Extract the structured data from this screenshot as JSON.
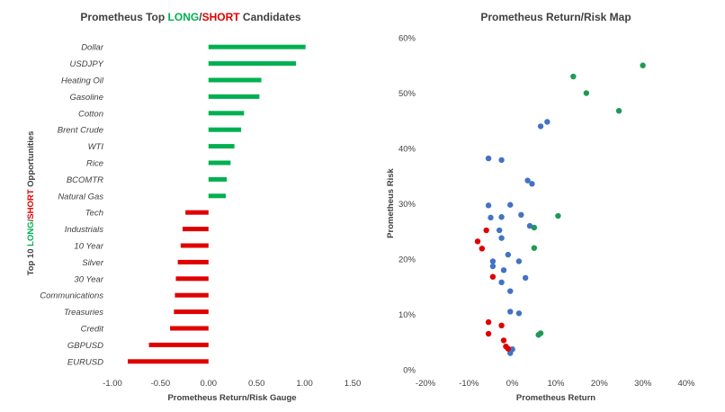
{
  "chart_data": [
    {
      "type": "bar",
      "orientation": "horizontal",
      "title": {
        "prefix": "Prometheus Top ",
        "long": "LONG",
        "sep": "/",
        "short": "SHORT",
        "suffix": " Candidates"
      },
      "xlabel": "Prometheus Return/Risk Gauge",
      "ylabel": {
        "prefix": "Top 10 ",
        "long": "LONG",
        "sep": "/",
        "short": "SHORT",
        "suffix": " Opportunities"
      },
      "xlim": [
        -1.0,
        1.5
      ],
      "xticks": [
        "-1.00",
        "-0.50",
        "0.00",
        "0.50",
        "1.00",
        "1.50"
      ],
      "xtick_values": [
        -1.0,
        -0.5,
        0.0,
        0.5,
        1.0,
        1.5
      ],
      "colors": {
        "long": "#00b050",
        "short": "#e00000"
      },
      "categories": [
        "Dollar",
        "USDJPY",
        "Heating Oil",
        "Gasoline",
        "Cotton",
        "Brent Crude",
        "WTI",
        "Rice",
        "BCOMTR",
        "Natural Gas",
        "Tech",
        "Industrials",
        "10 Year",
        "Silver",
        "30 Year",
        "Communications",
        "Treasuries",
        "Credit",
        "GBPUSD",
        "EURUSD"
      ],
      "values": [
        1.01,
        0.91,
        0.55,
        0.53,
        0.37,
        0.34,
        0.27,
        0.23,
        0.19,
        0.18,
        -0.24,
        -0.27,
        -0.29,
        -0.32,
        -0.34,
        -0.35,
        -0.36,
        -0.4,
        -0.62,
        -0.84
      ]
    },
    {
      "type": "scatter",
      "title": "Prometheus Return/Risk Map",
      "xlabel": "Prometheus Return",
      "ylabel": "Prometheus Risk",
      "xlim": [
        -0.2,
        0.4
      ],
      "ylim": [
        0.0,
        0.6
      ],
      "xticks": [
        "-20%",
        "-10%",
        "0%",
        "10%",
        "20%",
        "30%",
        "40%"
      ],
      "xtick_values": [
        -0.2,
        -0.1,
        0.0,
        0.1,
        0.2,
        0.3,
        0.4
      ],
      "yticks": [
        "0%",
        "10%",
        "20%",
        "30%",
        "40%",
        "50%",
        "60%"
      ],
      "ytick_values": [
        0.0,
        0.1,
        0.2,
        0.3,
        0.4,
        0.5,
        0.6
      ],
      "series": [
        {
          "color": "#1f9a54",
          "points": [
            [
              0.3,
              0.55
            ],
            [
              0.14,
              0.53
            ],
            [
              0.17,
              0.5
            ],
            [
              0.245,
              0.468
            ],
            [
              0.105,
              0.278
            ],
            [
              0.05,
              0.257
            ],
            [
              0.05,
              0.22
            ],
            [
              0.065,
              0.066
            ],
            [
              0.06,
              0.063
            ]
          ]
        },
        {
          "color": "#4472c4",
          "points": [
            [
              0.08,
              0.448
            ],
            [
              0.065,
              0.44
            ],
            [
              -0.055,
              0.382
            ],
            [
              -0.025,
              0.379
            ],
            [
              0.035,
              0.342
            ],
            [
              0.045,
              0.336
            ],
            [
              -0.055,
              0.297
            ],
            [
              -0.005,
              0.298
            ],
            [
              -0.05,
              0.275
            ],
            [
              -0.025,
              0.276
            ],
            [
              0.02,
              0.28
            ],
            [
              0.04,
              0.26
            ],
            [
              -0.03,
              0.252
            ],
            [
              -0.025,
              0.238
            ],
            [
              -0.01,
              0.208
            ],
            [
              0.015,
              0.196
            ],
            [
              -0.045,
              0.196
            ],
            [
              -0.045,
              0.187
            ],
            [
              -0.02,
              0.18
            ],
            [
              -0.025,
              0.158
            ],
            [
              0.03,
              0.166
            ],
            [
              -0.005,
              0.142
            ],
            [
              -0.005,
              0.105
            ],
            [
              0.015,
              0.102
            ],
            [
              0.0,
              0.037
            ],
            [
              -0.005,
              0.03
            ]
          ]
        },
        {
          "color": "#e00000",
          "points": [
            [
              -0.06,
              0.252
            ],
            [
              -0.08,
              0.232
            ],
            [
              -0.07,
              0.219
            ],
            [
              -0.045,
              0.168
            ],
            [
              -0.055,
              0.086
            ],
            [
              -0.025,
              0.08
            ],
            [
              -0.055,
              0.065
            ],
            [
              -0.02,
              0.053
            ],
            [
              -0.015,
              0.042
            ],
            [
              -0.01,
              0.038
            ]
          ]
        }
      ]
    }
  ]
}
